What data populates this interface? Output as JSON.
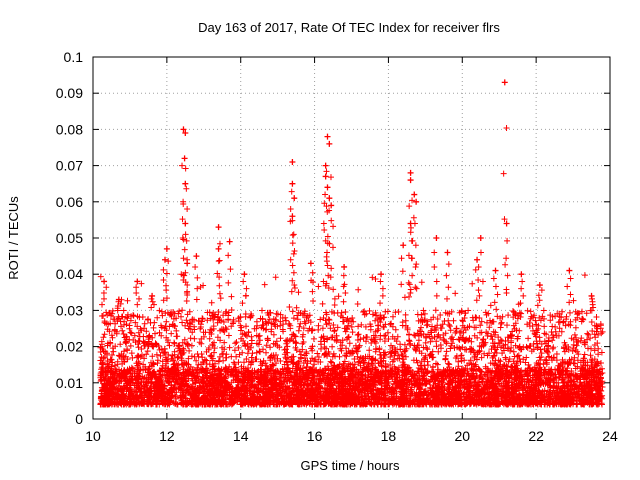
{
  "chart_data": {
    "type": "scatter",
    "title": "Day 163 of 2017, Rate Of TEC Index for receiver flrs",
    "xlabel": "GPS time / hours",
    "ylabel": "ROTI / TECUs",
    "xlim": [
      10,
      24
    ],
    "ylim": [
      0,
      0.1
    ],
    "grid": true,
    "marker": "+",
    "marker_color": "#ff0000",
    "x_ticks": [
      "10",
      "12",
      "14",
      "16",
      "18",
      "20",
      "22",
      "24"
    ],
    "y_ticks": [
      "0",
      "0.01",
      "0.02",
      "0.03",
      "0.04",
      "0.05",
      "0.06",
      "0.07",
      "0.08",
      "0.09",
      "0.1"
    ],
    "series": [
      {
        "name": "ROTI",
        "dense_band": {
          "x_range": [
            10.2,
            23.8
          ],
          "typical_range": [
            0.004,
            0.03
          ]
        },
        "spikes": [
          {
            "x": 10.3,
            "y": 0.038
          },
          {
            "x": 10.7,
            "y": 0.033
          },
          {
            "x": 11.2,
            "y": 0.038
          },
          {
            "x": 11.6,
            "y": 0.034
          },
          {
            "x": 11.95,
            "y": 0.044
          },
          {
            "x": 12.0,
            "y": 0.047
          },
          {
            "x": 12.45,
            "y": 0.08
          },
          {
            "x": 12.5,
            "y": 0.079
          },
          {
            "x": 12.48,
            "y": 0.072
          },
          {
            "x": 12.5,
            "y": 0.065
          },
          {
            "x": 12.5,
            "y": 0.054
          },
          {
            "x": 12.55,
            "y": 0.043
          },
          {
            "x": 12.8,
            "y": 0.045
          },
          {
            "x": 13.4,
            "y": 0.053
          },
          {
            "x": 13.4,
            "y": 0.047
          },
          {
            "x": 13.7,
            "y": 0.049
          },
          {
            "x": 14.1,
            "y": 0.04
          },
          {
            "x": 15.4,
            "y": 0.071
          },
          {
            "x": 15.4,
            "y": 0.065
          },
          {
            "x": 15.45,
            "y": 0.061
          },
          {
            "x": 15.4,
            "y": 0.056
          },
          {
            "x": 15.9,
            "y": 0.043
          },
          {
            "x": 16.35,
            "y": 0.078
          },
          {
            "x": 16.4,
            "y": 0.076
          },
          {
            "x": 16.3,
            "y": 0.07
          },
          {
            "x": 16.3,
            "y": 0.067
          },
          {
            "x": 16.35,
            "y": 0.064
          },
          {
            "x": 16.4,
            "y": 0.061
          },
          {
            "x": 16.45,
            "y": 0.059
          },
          {
            "x": 16.8,
            "y": 0.042
          },
          {
            "x": 17.8,
            "y": 0.04
          },
          {
            "x": 18.6,
            "y": 0.068
          },
          {
            "x": 18.6,
            "y": 0.066
          },
          {
            "x": 18.7,
            "y": 0.062
          },
          {
            "x": 18.75,
            "y": 0.06
          },
          {
            "x": 18.6,
            "y": 0.054
          },
          {
            "x": 18.4,
            "y": 0.048
          },
          {
            "x": 19.3,
            "y": 0.05
          },
          {
            "x": 19.6,
            "y": 0.046
          },
          {
            "x": 20.4,
            "y": 0.044
          },
          {
            "x": 20.5,
            "y": 0.05
          },
          {
            "x": 20.9,
            "y": 0.041
          },
          {
            "x": 21.15,
            "y": 0.093
          },
          {
            "x": 21.2,
            "y": 0.054
          },
          {
            "x": 21.6,
            "y": 0.04
          },
          {
            "x": 22.1,
            "y": 0.037
          },
          {
            "x": 22.9,
            "y": 0.041
          },
          {
            "x": 23.5,
            "y": 0.034
          }
        ]
      }
    ]
  }
}
